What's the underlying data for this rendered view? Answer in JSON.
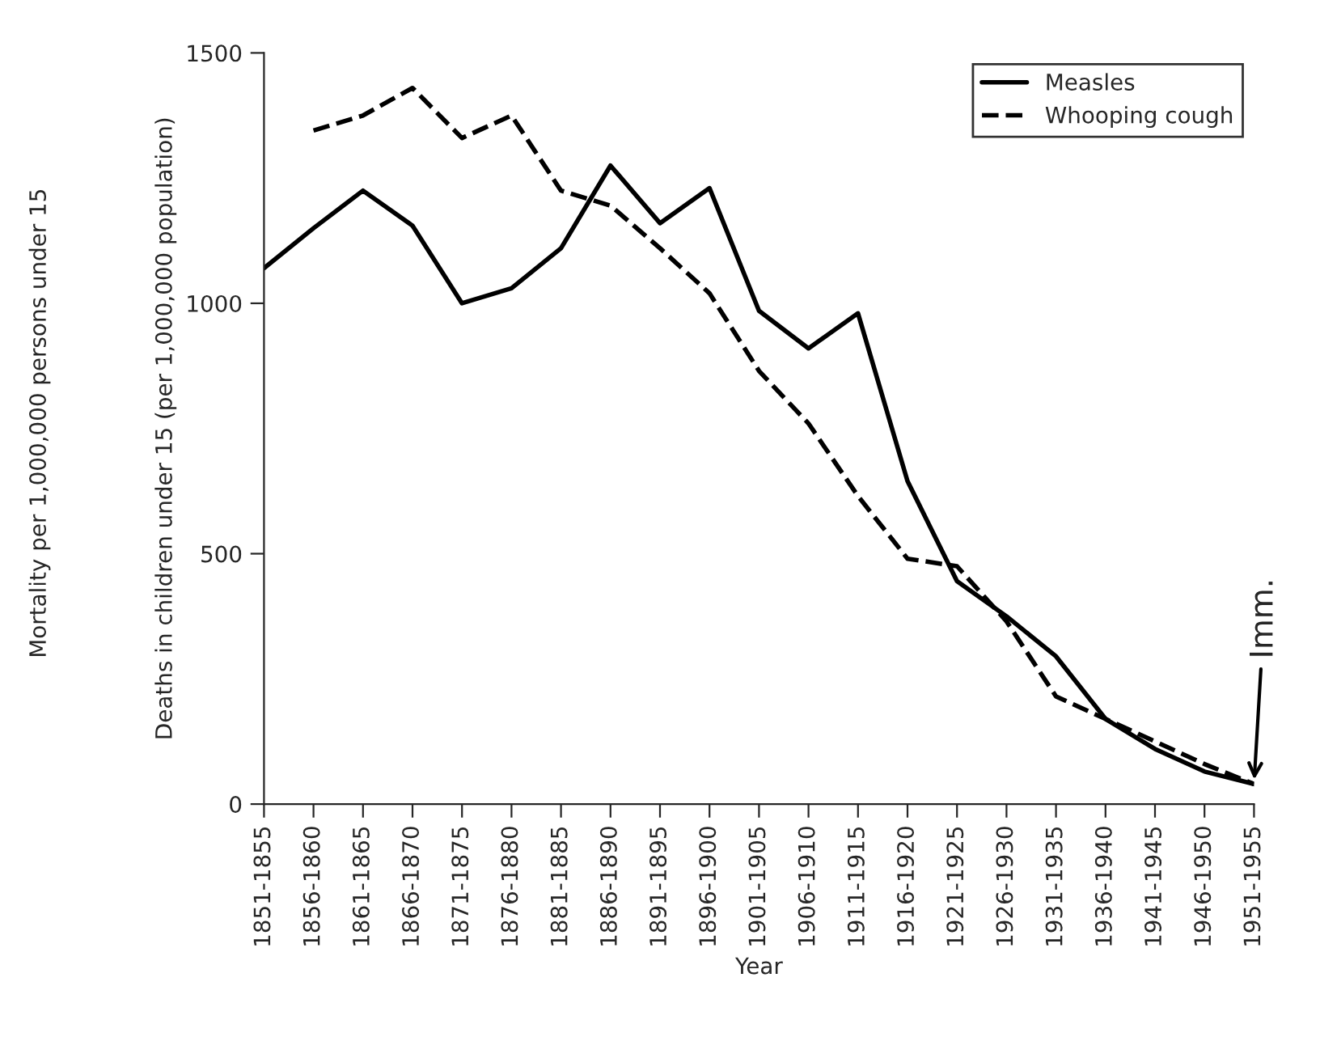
{
  "chart_data": {
    "type": "line",
    "xlabel": "Year",
    "ylabel": "Deaths in children under 15 (per 1,000,000 population)",
    "categories": [
      "1851-1855",
      "1856-1860",
      "1861-1865",
      "1866-1870",
      "1871-1875",
      "1876-1880",
      "1881-1885",
      "1886-1890",
      "1891-1895",
      "1896-1900",
      "1901-1905",
      "1906-1910",
      "1911-1915",
      "1916-1920",
      "1921-1925",
      "1926-1930",
      "1931-1935",
      "1936-1940",
      "1941-1945",
      "1946-1950",
      "1951-1955"
    ],
    "series": [
      {
        "name": "Measles",
        "color": "#000000",
        "line_style": "solid",
        "values": [
          1070,
          1150,
          1225,
          1155,
          1000,
          1030,
          1110,
          1275,
          1160,
          1230,
          985,
          910,
          980,
          645,
          445,
          375,
          295,
          170,
          110,
          65,
          40
        ]
      },
      {
        "name": "Whooping cough",
        "color": "#000000",
        "line_style": "dashed",
        "values": [
          null,
          1345,
          1375,
          1430,
          1330,
          1375,
          1225,
          1195,
          1110,
          1020,
          865,
          760,
          615,
          490,
          475,
          365,
          215,
          170,
          125,
          80,
          40
        ]
      }
    ],
    "ylim": [
      0,
      1500
    ],
    "yticks": [
      0,
      500,
      1000,
      1500
    ],
    "grid": false,
    "legend": "top right",
    "annotations": [
      "Mortality per 1,000,000 persons under 15",
      {
        "text": "Imm.",
        "x": "1951-1955",
        "y": 40
      }
    ]
  }
}
